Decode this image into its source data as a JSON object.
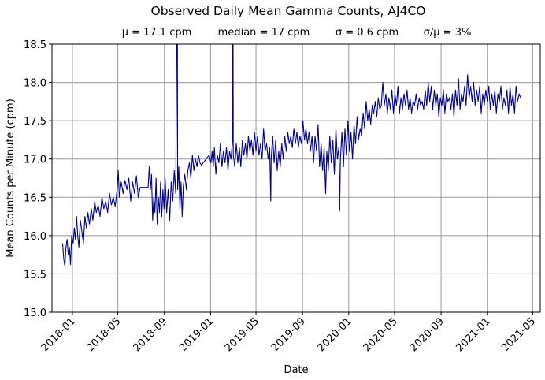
{
  "chart_data": {
    "type": "line",
    "title": "Observed Daily Mean Gamma Counts, AJ4CO",
    "subtitle": {
      "mean": "μ = 17.1 cpm",
      "median": "median = 17 cpm",
      "sigma": "σ = 0.6 cpm",
      "cv": "σ/μ = 3%"
    },
    "xlabel": "Date",
    "ylabel": "Mean Counts per Minute (cpm)",
    "xlim": [
      "2017-11-08",
      "2021-05-21"
    ],
    "ylim": [
      15.0,
      18.5
    ],
    "grid": true,
    "line_color": "#00008b",
    "x_ticks": [
      "2018-01",
      "2018-05",
      "2018-09",
      "2019-01",
      "2019-05",
      "2019-09",
      "2020-01",
      "2020-05",
      "2020-09",
      "2021-01",
      "2021-05"
    ],
    "y_ticks": [
      "15.0",
      "15.5",
      "16.0",
      "16.5",
      "17.0",
      "17.5",
      "18.0",
      "18.5"
    ],
    "points": [
      [
        "2017-12-06",
        15.9
      ],
      [
        "2017-12-09",
        15.7
      ],
      [
        "2017-12-12",
        15.6
      ],
      [
        "2017-12-15",
        15.85
      ],
      [
        "2017-12-18",
        15.95
      ],
      [
        "2017-12-21",
        15.75
      ],
      [
        "2017-12-24",
        15.85
      ],
      [
        "2017-12-27",
        15.62
      ],
      [
        "2017-12-30",
        16.0
      ],
      [
        "2018-01-03",
        15.9
      ],
      [
        "2018-01-06",
        16.1
      ],
      [
        "2018-01-09",
        15.95
      ],
      [
        "2018-01-12",
        16.25
      ],
      [
        "2018-01-15",
        16.0
      ],
      [
        "2018-01-18",
        15.85
      ],
      [
        "2018-01-22",
        16.2
      ],
      [
        "2018-01-26",
        16.05
      ],
      [
        "2018-01-30",
        15.9
      ],
      [
        "2018-02-03",
        16.25
      ],
      [
        "2018-02-07",
        16.1
      ],
      [
        "2018-02-11",
        16.3
      ],
      [
        "2018-02-15",
        16.15
      ],
      [
        "2018-02-20",
        16.35
      ],
      [
        "2018-02-24",
        16.2
      ],
      [
        "2018-03-01",
        16.45
      ],
      [
        "2018-03-05",
        16.3
      ],
      [
        "2018-03-10",
        16.4
      ],
      [
        "2018-03-15",
        16.25
      ],
      [
        "2018-03-20",
        16.5
      ],
      [
        "2018-03-25",
        16.35
      ],
      [
        "2018-03-30",
        16.45
      ],
      [
        "2018-04-04",
        16.3
      ],
      [
        "2018-04-09",
        16.55
      ],
      [
        "2018-04-14",
        16.4
      ],
      [
        "2018-04-19",
        16.5
      ],
      [
        "2018-04-24",
        16.38
      ],
      [
        "2018-04-29",
        16.6
      ],
      [
        "2018-05-02",
        16.85
      ],
      [
        "2018-05-05",
        16.5
      ],
      [
        "2018-05-10",
        16.7
      ],
      [
        "2018-05-15",
        16.55
      ],
      [
        "2018-05-20",
        16.72
      ],
      [
        "2018-05-25",
        16.6
      ],
      [
        "2018-05-30",
        16.75
      ],
      [
        "2018-06-04",
        16.45
      ],
      [
        "2018-06-09",
        16.7
      ],
      [
        "2018-06-14",
        16.55
      ],
      [
        "2018-06-19",
        16.78
      ],
      [
        "2018-06-24",
        16.5
      ],
      [
        "2018-06-29",
        16.63
      ],
      [
        "2018-07-20",
        16.63
      ],
      [
        "2018-07-23",
        16.9
      ],
      [
        "2018-07-26",
        16.6
      ],
      [
        "2018-07-29",
        16.8
      ],
      [
        "2018-08-01",
        16.2
      ],
      [
        "2018-08-04",
        16.5
      ],
      [
        "2018-08-07",
        16.3
      ],
      [
        "2018-08-10",
        16.75
      ],
      [
        "2018-08-13",
        16.15
      ],
      [
        "2018-08-16",
        16.5
      ],
      [
        "2018-08-19",
        16.3
      ],
      [
        "2018-08-22",
        16.7
      ],
      [
        "2018-08-25",
        16.25
      ],
      [
        "2018-08-28",
        16.6
      ],
      [
        "2018-08-31",
        16.35
      ],
      [
        "2018-09-03",
        16.75
      ],
      [
        "2018-09-07",
        16.3
      ],
      [
        "2018-09-11",
        16.6
      ],
      [
        "2018-09-15",
        16.2
      ],
      [
        "2018-09-19",
        16.7
      ],
      [
        "2018-09-23",
        16.45
      ],
      [
        "2018-09-27",
        16.85
      ],
      [
        "2018-10-01",
        16.55
      ],
      [
        "2018-10-05",
        19.8
      ],
      [
        "2018-10-06",
        16.6
      ],
      [
        "2018-10-09",
        16.9
      ],
      [
        "2018-10-12",
        16.35
      ],
      [
        "2018-10-15",
        16.7
      ],
      [
        "2018-10-18",
        16.25
      ],
      [
        "2018-10-21",
        16.65
      ],
      [
        "2018-10-25",
        16.8
      ],
      [
        "2018-10-29",
        16.6
      ],
      [
        "2018-11-02",
        16.85
      ],
      [
        "2018-11-06",
        16.95
      ],
      [
        "2018-11-10",
        16.75
      ],
      [
        "2018-11-14",
        17.05
      ],
      [
        "2018-11-18",
        16.85
      ],
      [
        "2018-11-22",
        17.0
      ],
      [
        "2018-11-26",
        16.9
      ],
      [
        "2018-11-30",
        17.05
      ],
      [
        "2018-12-04",
        16.95
      ],
      [
        "2018-12-08",
        16.92
      ],
      [
        "2018-12-28",
        17.05
      ],
      [
        "2019-01-02",
        16.95
      ],
      [
        "2019-01-05",
        17.1
      ],
      [
        "2019-01-08",
        16.9
      ],
      [
        "2019-01-11",
        17.15
      ],
      [
        "2019-01-15",
        16.8
      ],
      [
        "2019-01-19",
        17.05
      ],
      [
        "2019-01-23",
        16.95
      ],
      [
        "2019-01-27",
        17.2
      ],
      [
        "2019-01-31",
        16.9
      ],
      [
        "2019-02-04",
        17.1
      ],
      [
        "2019-02-08",
        16.95
      ],
      [
        "2019-02-12",
        17.15
      ],
      [
        "2019-02-16",
        16.85
      ],
      [
        "2019-02-20",
        17.1
      ],
      [
        "2019-02-24",
        17.0
      ],
      [
        "2019-02-28",
        17.25
      ],
      [
        "2019-03-01",
        19.5
      ],
      [
        "2019-03-02",
        17.05
      ],
      [
        "2019-03-06",
        16.9
      ],
      [
        "2019-03-10",
        17.2
      ],
      [
        "2019-03-14",
        16.95
      ],
      [
        "2019-03-18",
        17.15
      ],
      [
        "2019-03-22",
        16.9
      ],
      [
        "2019-03-26",
        17.25
      ],
      [
        "2019-03-30",
        17.05
      ],
      [
        "2019-04-03",
        17.2
      ],
      [
        "2019-04-07",
        17.0
      ],
      [
        "2019-04-11",
        17.3
      ],
      [
        "2019-04-15",
        17.1
      ],
      [
        "2019-04-19",
        17.25
      ],
      [
        "2019-04-23",
        17.05
      ],
      [
        "2019-04-27",
        17.35
      ],
      [
        "2019-05-01",
        17.1
      ],
      [
        "2019-05-05",
        17.3
      ],
      [
        "2019-05-09",
        17.05
      ],
      [
        "2019-05-13",
        17.2
      ],
      [
        "2019-05-17",
        17.0
      ],
      [
        "2019-05-21",
        17.4
      ],
      [
        "2019-05-25",
        17.1
      ],
      [
        "2019-05-29",
        17.2
      ],
      [
        "2019-06-02",
        17.0
      ],
      [
        "2019-06-06",
        17.15
      ],
      [
        "2019-06-09",
        16.45
      ],
      [
        "2019-06-10",
        17.0
      ],
      [
        "2019-06-14",
        17.3
      ],
      [
        "2019-06-18",
        16.95
      ],
      [
        "2019-06-22",
        17.25
      ],
      [
        "2019-06-26",
        16.85
      ],
      [
        "2019-06-30",
        17.1
      ],
      [
        "2019-07-04",
        16.9
      ],
      [
        "2019-07-08",
        17.2
      ],
      [
        "2019-07-12",
        17.0
      ],
      [
        "2019-07-16",
        17.3
      ],
      [
        "2019-07-20",
        17.1
      ],
      [
        "2019-07-24",
        17.35
      ],
      [
        "2019-07-28",
        17.2
      ],
      [
        "2019-08-01",
        17.3
      ],
      [
        "2019-08-05",
        17.15
      ],
      [
        "2019-08-09",
        17.4
      ],
      [
        "2019-08-13",
        17.2
      ],
      [
        "2019-08-17",
        17.35
      ],
      [
        "2019-08-21",
        17.15
      ],
      [
        "2019-08-25",
        17.3
      ],
      [
        "2019-08-29",
        17.2
      ],
      [
        "2019-09-02",
        17.5
      ],
      [
        "2019-09-06",
        17.25
      ],
      [
        "2019-09-10",
        17.4
      ],
      [
        "2019-09-14",
        17.2
      ],
      [
        "2019-09-18",
        17.35
      ],
      [
        "2019-09-22",
        17.1
      ],
      [
        "2019-09-26",
        17.3
      ],
      [
        "2019-09-30",
        16.95
      ],
      [
        "2019-10-04",
        17.3
      ],
      [
        "2019-10-08",
        17.1
      ],
      [
        "2019-10-12",
        17.45
      ],
      [
        "2019-10-16",
        16.9
      ],
      [
        "2019-10-20",
        17.2
      ],
      [
        "2019-10-24",
        16.85
      ],
      [
        "2019-10-28",
        17.15
      ],
      [
        "2019-11-01",
        16.55
      ],
      [
        "2019-11-04",
        17.1
      ],
      [
        "2019-11-08",
        16.85
      ],
      [
        "2019-11-12",
        17.3
      ],
      [
        "2019-11-16",
        16.95
      ],
      [
        "2019-11-20",
        17.25
      ],
      [
        "2019-11-24",
        16.8
      ],
      [
        "2019-11-28",
        17.4
      ],
      [
        "2019-12-02",
        17.0
      ],
      [
        "2019-12-06",
        17.15
      ],
      [
        "2019-12-08",
        16.32
      ],
      [
        "2019-12-10",
        17.0
      ],
      [
        "2019-12-14",
        17.35
      ],
      [
        "2019-12-18",
        16.9
      ],
      [
        "2019-12-22",
        17.4
      ],
      [
        "2019-12-26",
        17.05
      ],
      [
        "2019-12-30",
        17.5
      ],
      [
        "2020-01-03",
        17.1
      ],
      [
        "2020-01-07",
        17.35
      ],
      [
        "2020-01-11",
        17.0
      ],
      [
        "2020-01-15",
        17.45
      ],
      [
        "2020-01-19",
        17.2
      ],
      [
        "2020-01-23",
        17.55
      ],
      [
        "2020-01-27",
        17.25
      ],
      [
        "2020-01-31",
        17.4
      ],
      [
        "2020-02-04",
        17.3
      ],
      [
        "2020-02-08",
        17.6
      ],
      [
        "2020-02-12",
        17.4
      ],
      [
        "2020-02-16",
        17.75
      ],
      [
        "2020-02-20",
        17.5
      ],
      [
        "2020-02-24",
        17.65
      ],
      [
        "2020-02-28",
        17.45
      ],
      [
        "2020-03-03",
        17.7
      ],
      [
        "2020-03-07",
        17.6
      ],
      [
        "2020-03-11",
        17.75
      ],
      [
        "2020-03-15",
        17.55
      ],
      [
        "2020-03-19",
        17.8
      ],
      [
        "2020-03-23",
        17.65
      ],
      [
        "2020-03-27",
        17.7
      ],
      [
        "2020-03-31",
        18.0
      ],
      [
        "2020-04-04",
        17.7
      ],
      [
        "2020-04-08",
        17.85
      ],
      [
        "2020-04-12",
        17.6
      ],
      [
        "2020-04-16",
        17.8
      ],
      [
        "2020-04-20",
        17.65
      ],
      [
        "2020-04-24",
        17.9
      ],
      [
        "2020-04-28",
        17.6
      ],
      [
        "2020-05-02",
        17.85
      ],
      [
        "2020-05-06",
        17.7
      ],
      [
        "2020-05-10",
        17.95
      ],
      [
        "2020-05-14",
        17.6
      ],
      [
        "2020-05-18",
        17.8
      ],
      [
        "2020-05-22",
        17.65
      ],
      [
        "2020-05-26",
        17.85
      ],
      [
        "2020-05-30",
        17.7
      ],
      [
        "2020-06-03",
        17.9
      ],
      [
        "2020-06-07",
        17.65
      ],
      [
        "2020-06-11",
        17.8
      ],
      [
        "2020-06-15",
        17.6
      ],
      [
        "2020-06-19",
        17.75
      ],
      [
        "2020-06-23",
        17.7
      ],
      [
        "2020-06-27",
        17.85
      ],
      [
        "2020-07-01",
        17.65
      ],
      [
        "2020-07-05",
        17.8
      ],
      [
        "2020-07-09",
        17.7
      ],
      [
        "2020-07-13",
        17.75
      ],
      [
        "2020-07-17",
        17.65
      ],
      [
        "2020-07-21",
        17.9
      ],
      [
        "2020-07-25",
        17.7
      ],
      [
        "2020-07-29",
        18.0
      ],
      [
        "2020-08-02",
        17.75
      ],
      [
        "2020-08-06",
        17.95
      ],
      [
        "2020-08-10",
        17.65
      ],
      [
        "2020-08-14",
        17.9
      ],
      [
        "2020-08-18",
        17.7
      ],
      [
        "2020-08-22",
        17.85
      ],
      [
        "2020-08-26",
        17.55
      ],
      [
        "2020-08-30",
        17.8
      ],
      [
        "2020-09-03",
        17.7
      ],
      [
        "2020-09-07",
        17.9
      ],
      [
        "2020-09-11",
        17.6
      ],
      [
        "2020-09-15",
        17.85
      ],
      [
        "2020-09-19",
        17.75
      ],
      [
        "2020-09-23",
        17.8
      ],
      [
        "2020-09-27",
        17.65
      ],
      [
        "2020-10-01",
        17.85
      ],
      [
        "2020-10-05",
        17.55
      ],
      [
        "2020-10-09",
        17.9
      ],
      [
        "2020-10-13",
        17.7
      ],
      [
        "2020-10-17",
        18.05
      ],
      [
        "2020-10-21",
        17.65
      ],
      [
        "2020-10-25",
        17.85
      ],
      [
        "2020-10-29",
        17.75
      ],
      [
        "2020-11-02",
        17.95
      ],
      [
        "2020-11-06",
        17.7
      ],
      [
        "2020-11-10",
        18.1
      ],
      [
        "2020-11-14",
        17.8
      ],
      [
        "2020-11-18",
        17.95
      ],
      [
        "2020-11-22",
        17.75
      ],
      [
        "2020-11-26",
        18.0
      ],
      [
        "2020-11-30",
        17.7
      ],
      [
        "2020-12-04",
        17.9
      ],
      [
        "2020-12-08",
        17.75
      ],
      [
        "2020-12-12",
        17.95
      ],
      [
        "2020-12-16",
        17.6
      ],
      [
        "2020-12-20",
        17.85
      ],
      [
        "2020-12-24",
        17.7
      ],
      [
        "2020-12-28",
        17.9
      ],
      [
        "2021-01-01",
        17.75
      ],
      [
        "2021-01-05",
        17.95
      ],
      [
        "2021-01-09",
        17.65
      ],
      [
        "2021-01-13",
        17.85
      ],
      [
        "2021-01-17",
        17.7
      ],
      [
        "2021-01-21",
        17.9
      ],
      [
        "2021-01-25",
        17.6
      ],
      [
        "2021-01-29",
        17.85
      ],
      [
        "2021-02-02",
        17.75
      ],
      [
        "2021-02-06",
        17.95
      ],
      [
        "2021-02-10",
        17.65
      ],
      [
        "2021-02-14",
        17.8
      ],
      [
        "2021-02-18",
        17.7
      ],
      [
        "2021-02-22",
        17.9
      ],
      [
        "2021-02-26",
        17.6
      ],
      [
        "2021-03-02",
        17.95
      ],
      [
        "2021-03-06",
        17.7
      ],
      [
        "2021-03-10",
        17.85
      ],
      [
        "2021-03-14",
        17.6
      ],
      [
        "2021-03-18",
        17.95
      ],
      [
        "2021-03-22",
        17.75
      ],
      [
        "2021-03-26",
        17.85
      ],
      [
        "2021-03-30",
        17.8
      ]
    ]
  }
}
